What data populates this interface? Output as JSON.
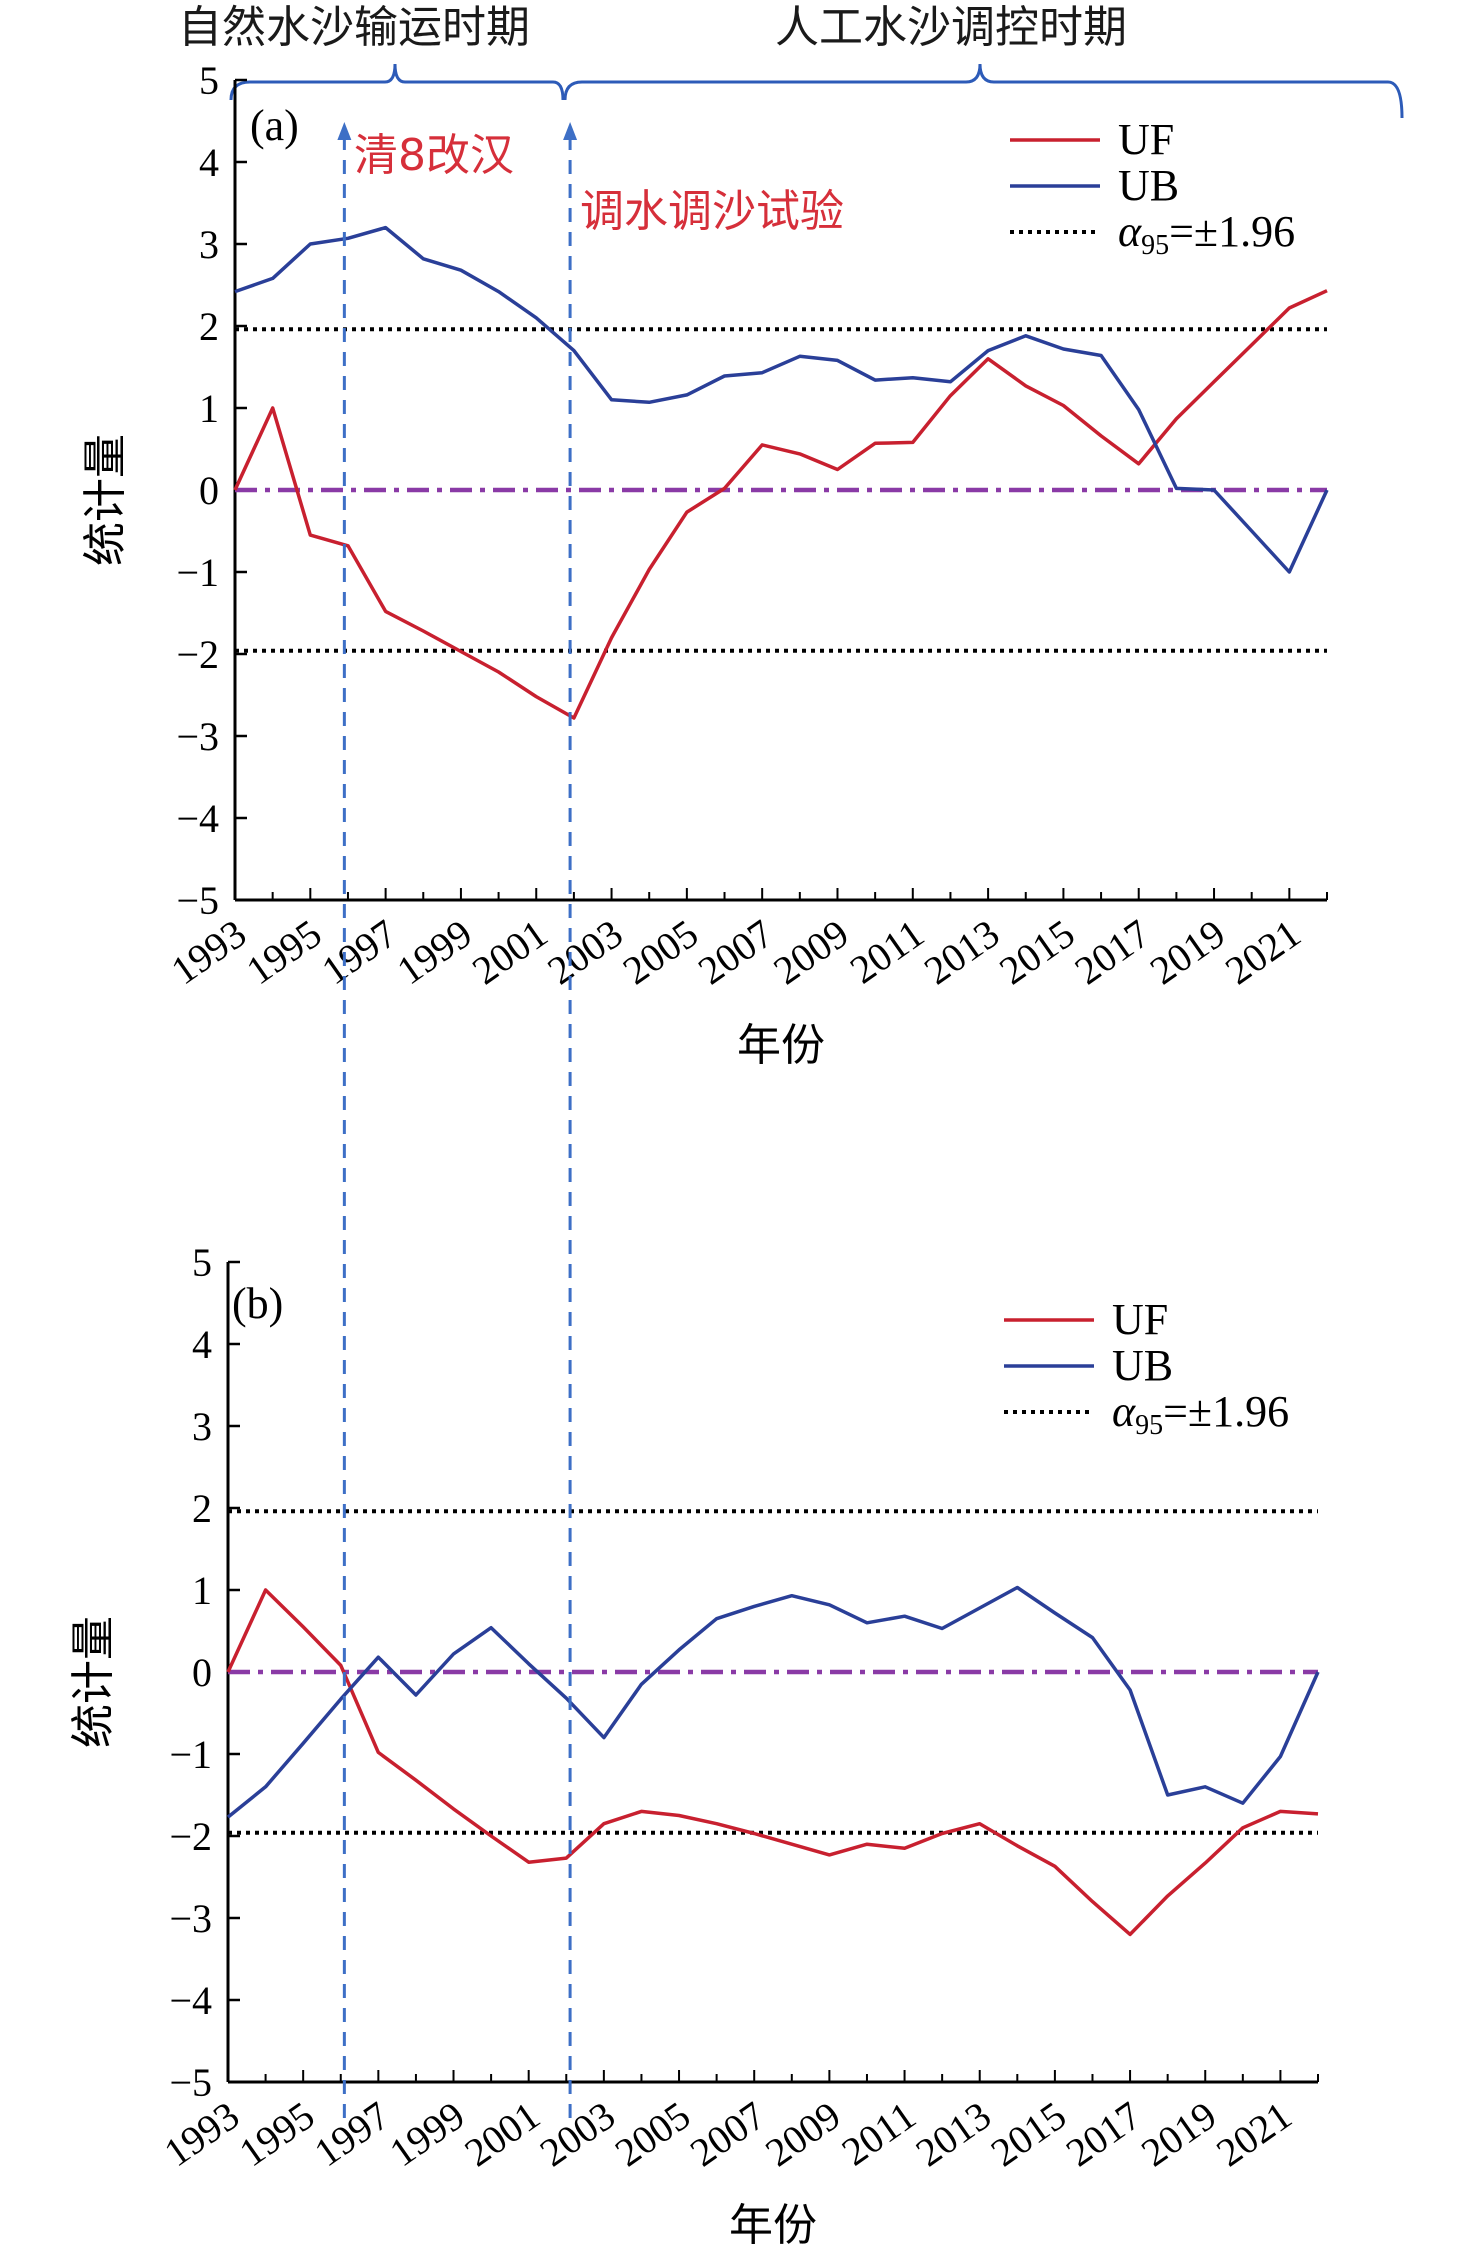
{
  "figure": {
    "periods": {
      "natural": "自然水沙输运时期",
      "regulated": "人工水沙调控时期"
    },
    "events": [
      {
        "label": "清8改汉",
        "year": 1996,
        "color": "#d62f3a"
      },
      {
        "label": "调水调沙试验",
        "year": 2002,
        "color": "#d62f3a"
      }
    ],
    "colors": {
      "uf": "#c8202f",
      "ub": "#2a3f98",
      "zero_line": "#8a3aa6",
      "event_line": "#3d6fc6",
      "threshold": "#000000"
    }
  },
  "chart_data": [
    {
      "type": "line",
      "panel_label": "(a)",
      "xlabel": "年份",
      "ylabel": "统计量",
      "xlim": [
        1993,
        2022
      ],
      "ylim": [
        -5,
        5
      ],
      "yticks": [
        5,
        4,
        3,
        2,
        1,
        0,
        -1,
        -2,
        -3,
        -4,
        -5
      ],
      "xticks": [
        "1993",
        "1995",
        "1997",
        "1999",
        "2001",
        "2003",
        "2005",
        "2007",
        "2009",
        "2011",
        "2013",
        "2015",
        "2017",
        "2019",
        "2021"
      ],
      "legend": {
        "uf": "UF",
        "ub": "UB",
        "alpha_sym": "α",
        "alpha_sub": "95",
        "alpha_val": "=±1.96"
      },
      "threshold": 1.96,
      "x": [
        1993,
        1994,
        1995,
        1996,
        1997,
        1998,
        1999,
        2000,
        2001,
        2002,
        2003,
        2004,
        2005,
        2006,
        2007,
        2008,
        2009,
        2010,
        2011,
        2012,
        2013,
        2014,
        2015,
        2016,
        2017,
        2018,
        2019,
        2020,
        2021,
        2022
      ],
      "series": [
        {
          "name": "UF",
          "values": [
            0,
            1.0,
            -0.55,
            -0.68,
            -1.48,
            -1.72,
            -1.97,
            -2.22,
            -2.52,
            -2.78,
            -1.8,
            -0.97,
            -0.27,
            0.02,
            0.55,
            0.44,
            0.25,
            0.57,
            0.58,
            1.15,
            1.6,
            1.27,
            1.03,
            0.66,
            0.32,
            0.87,
            1.32,
            1.77,
            2.22,
            2.43
          ]
        },
        {
          "name": "UB",
          "values": [
            2.42,
            2.58,
            3.0,
            3.07,
            3.2,
            2.82,
            2.68,
            2.42,
            2.1,
            1.7,
            1.1,
            1.07,
            1.16,
            1.39,
            1.43,
            1.63,
            1.58,
            1.34,
            1.37,
            1.32,
            1.7,
            1.88,
            1.72,
            1.64,
            0.98,
            0.02,
            0.0,
            -0.5,
            -1.0,
            0.0
          ]
        }
      ]
    },
    {
      "type": "line",
      "panel_label": "(b)",
      "xlabel": "年份",
      "ylabel": "统计量",
      "xlim": [
        1993,
        2022
      ],
      "ylim": [
        -5,
        5
      ],
      "yticks": [
        5,
        4,
        3,
        2,
        1,
        0,
        -1,
        -2,
        -3,
        -4,
        -5
      ],
      "xticks": [
        "1993",
        "1995",
        "1997",
        "1999",
        "2001",
        "2003",
        "2005",
        "2007",
        "2009",
        "2011",
        "2013",
        "2015",
        "2017",
        "2019",
        "2021"
      ],
      "legend": {
        "uf": "UF",
        "ub": "UB",
        "alpha_sym": "α",
        "alpha_sub": "95",
        "alpha_val": "=±1.96"
      },
      "threshold": 1.96,
      "x": [
        1993,
        1994,
        1995,
        1996,
        1997,
        1998,
        1999,
        2000,
        2001,
        2002,
        2003,
        2004,
        2005,
        2006,
        2007,
        2008,
        2009,
        2010,
        2011,
        2012,
        2013,
        2014,
        2015,
        2016,
        2017,
        2018,
        2019,
        2020,
        2021,
        2022
      ],
      "series": [
        {
          "name": "UF",
          "values": [
            0,
            1.0,
            0.55,
            0.08,
            -0.98,
            -1.32,
            -1.67,
            -2.0,
            -2.32,
            -2.27,
            -1.85,
            -1.7,
            -1.75,
            -1.85,
            -1.97,
            -2.1,
            -2.23,
            -2.1,
            -2.15,
            -1.97,
            -1.85,
            -2.12,
            -2.37,
            -2.8,
            -3.2,
            -2.73,
            -2.33,
            -1.9,
            -1.7,
            -1.73
          ]
        },
        {
          "name": "UB",
          "values": [
            -1.77,
            -1.4,
            -0.87,
            -0.33,
            0.18,
            -0.28,
            0.22,
            0.54,
            0.1,
            -0.32,
            -0.8,
            -0.15,
            0.27,
            0.65,
            0.8,
            0.93,
            0.82,
            0.6,
            0.68,
            0.53,
            0.78,
            1.03,
            0.72,
            0.42,
            -0.22,
            -1.5,
            -1.4,
            -1.6,
            -1.03,
            0.0
          ]
        }
      ]
    }
  ]
}
